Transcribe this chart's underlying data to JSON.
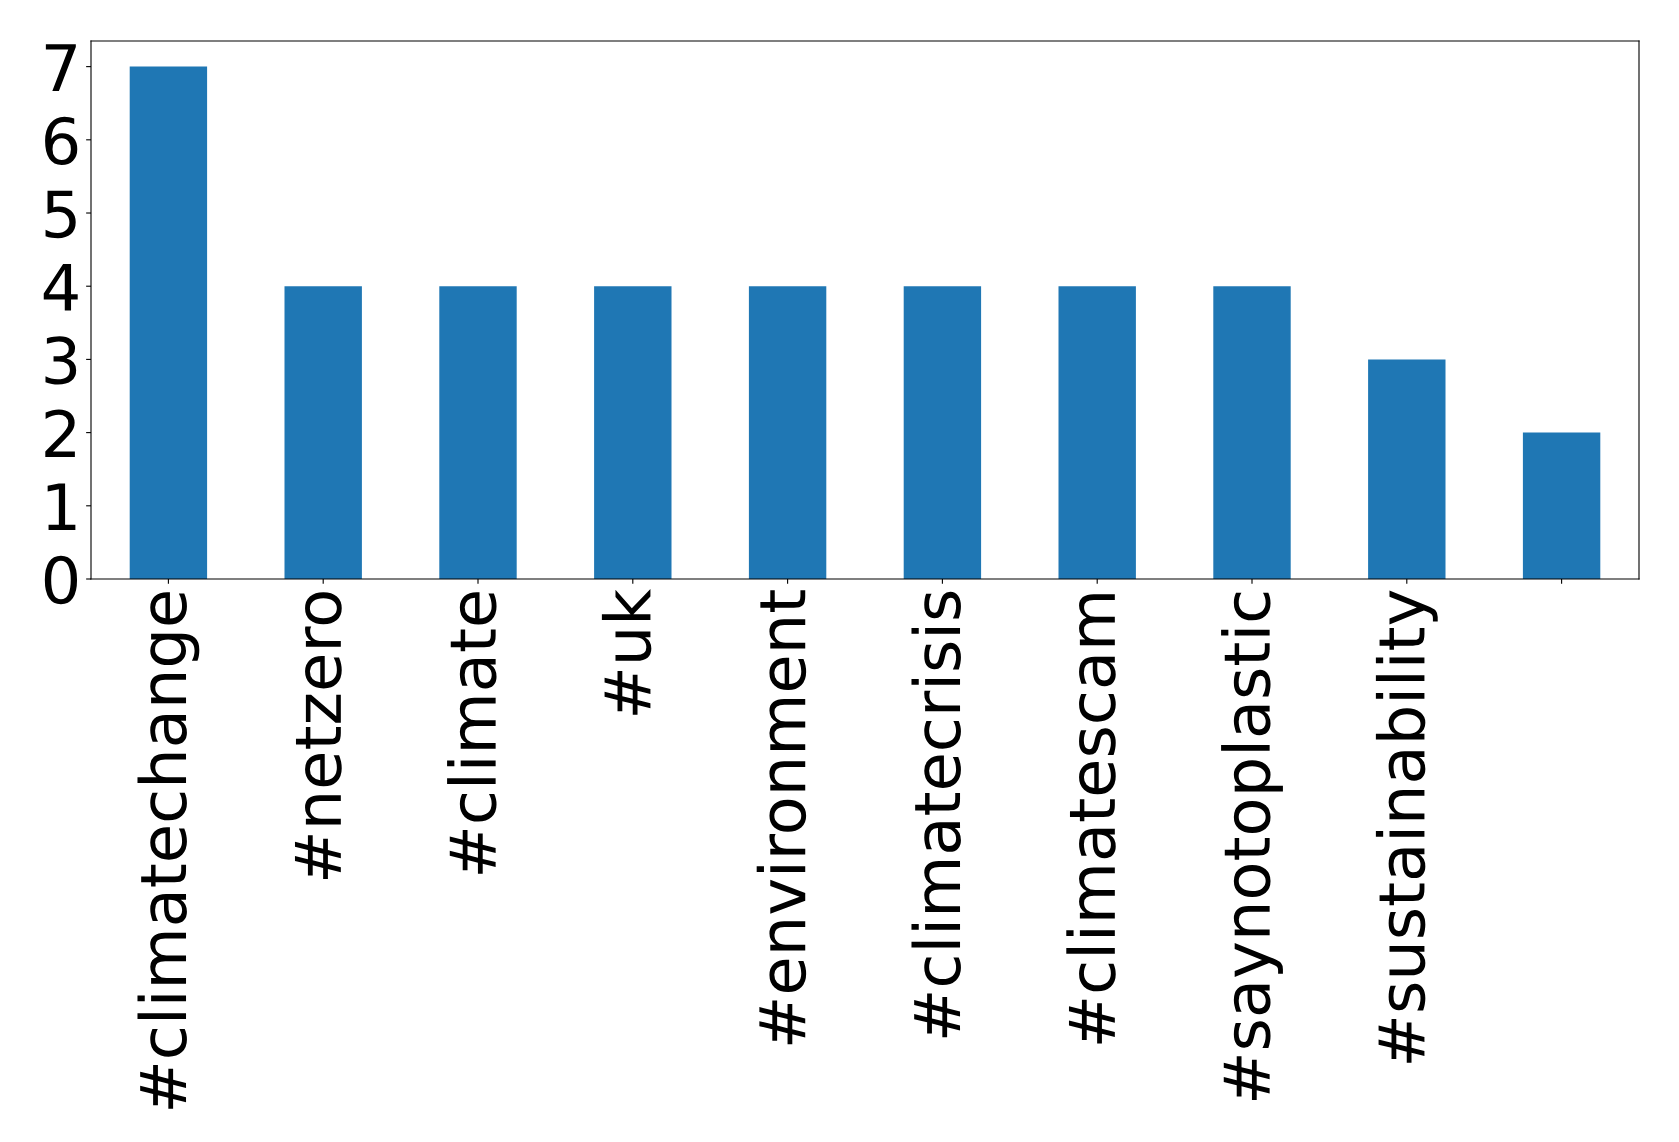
{
  "chart_data": {
    "type": "bar",
    "categories": [
      "#climatechange",
      "#netzero",
      "#climate",
      "#uk",
      "#environment",
      "#climatecrisis",
      "#climatescam",
      "#saynotoplastic",
      "#sustainability",
      null
    ],
    "values": [
      7,
      4,
      4,
      4,
      4,
      4,
      4,
      4,
      3,
      2
    ],
    "color": "#1f77b4",
    "ylim": [
      0,
      7.35
    ],
    "yticks": [
      0,
      1,
      2,
      3,
      4,
      5,
      6,
      7
    ],
    "grid": false,
    "legend": false
  }
}
